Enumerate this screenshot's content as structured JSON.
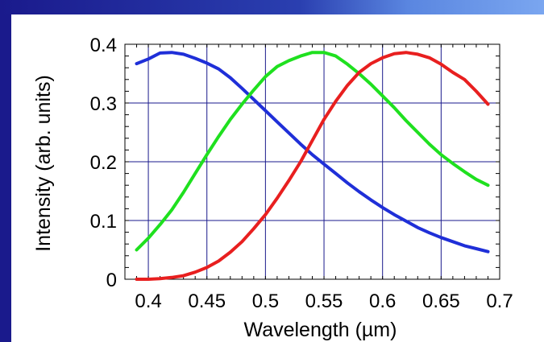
{
  "chart_data": {
    "type": "line",
    "title": "",
    "xlabel": "Wavelength  (µm)",
    "ylabel": "Intensity (arb. units)",
    "xlim": [
      0.38,
      0.7
    ],
    "ylim": [
      0,
      0.4
    ],
    "xticks": [
      "0.4",
      "0.45",
      "0.5",
      "0.55",
      "0.6",
      "0.65",
      "0.7"
    ],
    "yticks": [
      "0",
      "0.1",
      "0.2",
      "0.3",
      "0.4"
    ],
    "grid": true,
    "legend": "none",
    "series": [
      {
        "color": "#1f2fd8",
        "x": [
          0.39,
          0.4,
          0.41,
          0.42,
          0.43,
          0.44,
          0.45,
          0.46,
          0.47,
          0.48,
          0.49,
          0.5,
          0.51,
          0.52,
          0.53,
          0.54,
          0.55,
          0.56,
          0.57,
          0.58,
          0.59,
          0.6,
          0.61,
          0.62,
          0.63,
          0.64,
          0.65,
          0.66,
          0.67,
          0.68,
          0.69
        ],
        "y": [
          0.367,
          0.375,
          0.385,
          0.386,
          0.383,
          0.376,
          0.368,
          0.358,
          0.343,
          0.325,
          0.306,
          0.287,
          0.268,
          0.249,
          0.23,
          0.212,
          0.196,
          0.18,
          0.164,
          0.149,
          0.135,
          0.122,
          0.11,
          0.099,
          0.088,
          0.079,
          0.071,
          0.064,
          0.057,
          0.052,
          0.047
        ]
      },
      {
        "color": "#1fe01f",
        "x": [
          0.39,
          0.4,
          0.41,
          0.42,
          0.43,
          0.44,
          0.45,
          0.46,
          0.47,
          0.48,
          0.49,
          0.5,
          0.51,
          0.52,
          0.53,
          0.54,
          0.55,
          0.56,
          0.57,
          0.58,
          0.59,
          0.6,
          0.61,
          0.62,
          0.63,
          0.64,
          0.65,
          0.66,
          0.67,
          0.68,
          0.69
        ],
        "y": [
          0.05,
          0.07,
          0.093,
          0.118,
          0.148,
          0.18,
          0.212,
          0.243,
          0.272,
          0.298,
          0.322,
          0.345,
          0.362,
          0.372,
          0.38,
          0.386,
          0.386,
          0.38,
          0.366,
          0.35,
          0.332,
          0.312,
          0.292,
          0.27,
          0.25,
          0.23,
          0.212,
          0.197,
          0.183,
          0.17,
          0.16
        ]
      },
      {
        "color": "#e81f1f",
        "x": [
          0.39,
          0.4,
          0.41,
          0.42,
          0.43,
          0.44,
          0.45,
          0.46,
          0.47,
          0.48,
          0.49,
          0.5,
          0.51,
          0.52,
          0.53,
          0.54,
          0.55,
          0.56,
          0.57,
          0.58,
          0.59,
          0.6,
          0.61,
          0.62,
          0.63,
          0.64,
          0.65,
          0.66,
          0.67,
          0.68,
          0.69
        ],
        "y": [
          0.0,
          0.0,
          0.001,
          0.003,
          0.006,
          0.012,
          0.02,
          0.031,
          0.046,
          0.064,
          0.086,
          0.11,
          0.138,
          0.168,
          0.2,
          0.236,
          0.272,
          0.303,
          0.33,
          0.352,
          0.367,
          0.377,
          0.384,
          0.386,
          0.383,
          0.377,
          0.366,
          0.352,
          0.34,
          0.32,
          0.298
        ]
      }
    ]
  }
}
